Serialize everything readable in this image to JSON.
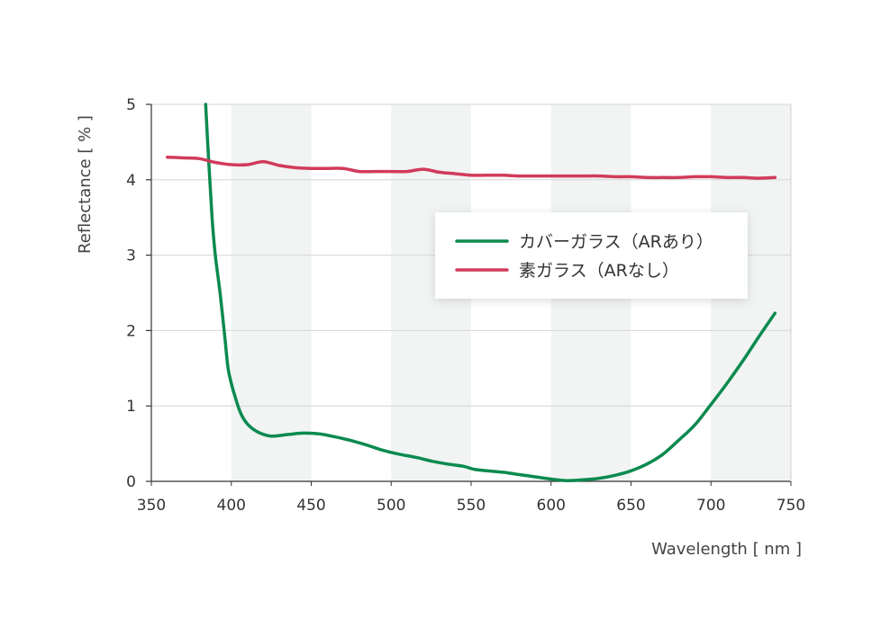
{
  "chart_data": {
    "type": "line",
    "title": "",
    "xlabel": "Wavelength [ nm ]",
    "ylabel": "Reflectance [ % ]",
    "xlim": [
      350,
      750
    ],
    "ylim": [
      0,
      5
    ],
    "x_ticks": [
      "350",
      "400",
      "450",
      "500",
      "550",
      "600",
      "650",
      "700",
      "750"
    ],
    "y_ticks": [
      "0",
      "1",
      "2",
      "3",
      "4",
      "5"
    ],
    "grid": "horizontal",
    "band_shading": [
      [
        400,
        450
      ],
      [
        500,
        550
      ],
      [
        600,
        650
      ],
      [
        700,
        750
      ]
    ],
    "band_color": "#f1f4f2",
    "legend_position": "center-right",
    "series": [
      {
        "name": "カバーガラス（ARあり）",
        "color": "#0b8a4f",
        "points": [
          [
            384,
            5.0
          ],
          [
            386,
            4.2
          ],
          [
            388,
            3.5
          ],
          [
            390,
            3.0
          ],
          [
            393,
            2.5
          ],
          [
            396,
            1.9
          ],
          [
            398,
            1.5
          ],
          [
            400,
            1.3
          ],
          [
            402,
            1.15
          ],
          [
            405,
            0.95
          ],
          [
            408,
            0.82
          ],
          [
            412,
            0.72
          ],
          [
            418,
            0.64
          ],
          [
            425,
            0.6
          ],
          [
            435,
            0.62
          ],
          [
            445,
            0.64
          ],
          [
            455,
            0.63
          ],
          [
            465,
            0.59
          ],
          [
            475,
            0.54
          ],
          [
            485,
            0.48
          ],
          [
            495,
            0.41
          ],
          [
            505,
            0.36
          ],
          [
            515,
            0.32
          ],
          [
            525,
            0.27
          ],
          [
            535,
            0.23
          ],
          [
            545,
            0.2
          ],
          [
            552,
            0.16
          ],
          [
            560,
            0.14
          ],
          [
            570,
            0.12
          ],
          [
            580,
            0.09
          ],
          [
            590,
            0.06
          ],
          [
            600,
            0.03
          ],
          [
            610,
            0.01
          ],
          [
            620,
            0.02
          ],
          [
            630,
            0.04
          ],
          [
            640,
            0.08
          ],
          [
            650,
            0.14
          ],
          [
            660,
            0.23
          ],
          [
            670,
            0.36
          ],
          [
            680,
            0.55
          ],
          [
            690,
            0.75
          ],
          [
            700,
            1.02
          ],
          [
            710,
            1.3
          ],
          [
            720,
            1.6
          ],
          [
            730,
            1.92
          ],
          [
            740,
            2.23
          ]
        ]
      },
      {
        "name": "素ガラス（ARなし）",
        "color": "#d13b5a",
        "points": [
          [
            360,
            4.3
          ],
          [
            370,
            4.29
          ],
          [
            380,
            4.28
          ],
          [
            390,
            4.23
          ],
          [
            400,
            4.2
          ],
          [
            410,
            4.2
          ],
          [
            420,
            4.24
          ],
          [
            430,
            4.19
          ],
          [
            440,
            4.16
          ],
          [
            450,
            4.15
          ],
          [
            460,
            4.15
          ],
          [
            470,
            4.15
          ],
          [
            480,
            4.11
          ],
          [
            490,
            4.11
          ],
          [
            500,
            4.11
          ],
          [
            510,
            4.11
          ],
          [
            520,
            4.14
          ],
          [
            530,
            4.1
          ],
          [
            540,
            4.08
          ],
          [
            550,
            4.06
          ],
          [
            560,
            4.06
          ],
          [
            570,
            4.06
          ],
          [
            580,
            4.05
          ],
          [
            590,
            4.05
          ],
          [
            600,
            4.05
          ],
          [
            610,
            4.05
          ],
          [
            620,
            4.05
          ],
          [
            630,
            4.05
          ],
          [
            640,
            4.04
          ],
          [
            650,
            4.04
          ],
          [
            660,
            4.03
          ],
          [
            670,
            4.03
          ],
          [
            680,
            4.03
          ],
          [
            690,
            4.04
          ],
          [
            700,
            4.04
          ],
          [
            710,
            4.03
          ],
          [
            720,
            4.03
          ],
          [
            730,
            4.02
          ],
          [
            740,
            4.03
          ]
        ]
      }
    ]
  }
}
